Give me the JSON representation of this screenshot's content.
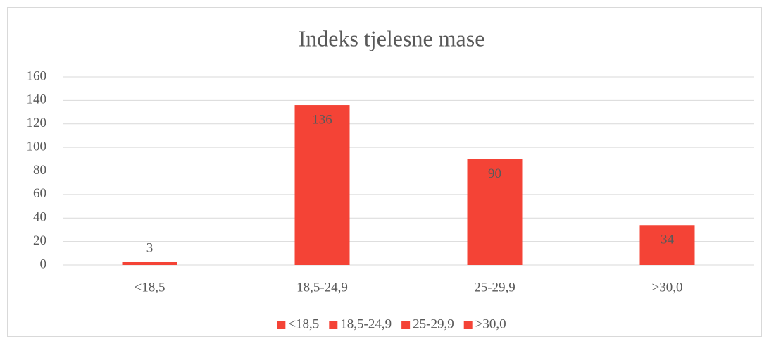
{
  "chart_data": {
    "type": "bar",
    "title": "Indeks tjelesne mase",
    "categories": [
      "<18,5",
      "18,5-24,9",
      "25-29,9",
      ">30,0"
    ],
    "values": [
      3,
      136,
      90,
      34
    ],
    "color": "#f44336",
    "ylim": [
      0,
      160
    ],
    "yticks": [
      0,
      20,
      40,
      60,
      80,
      100,
      120,
      140,
      160
    ],
    "grid": true,
    "legend": "bottom"
  }
}
